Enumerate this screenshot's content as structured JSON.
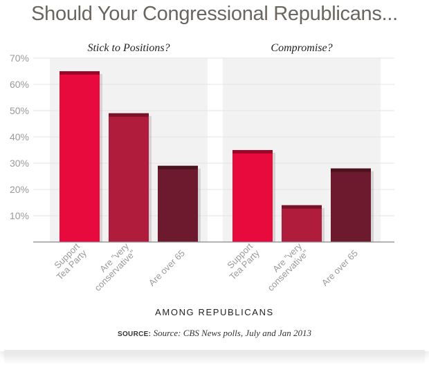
{
  "title": "Should Your Congressional Republicans...",
  "xlabel": "AMONG REPUBLICANS",
  "source_label": "SOURCE:",
  "source_text": "Source: CBS News polls, July and Jan 2013",
  "colors": {
    "support_tea_party": "#e8093d",
    "very_conservative": "#b01c3b",
    "over_65": "#6e1a2e",
    "panel_bg": "#f2f2f2",
    "grid": "#e4e4e4"
  },
  "chart_data": {
    "type": "bar",
    "ylim": [
      0,
      70
    ],
    "yticks": [
      "10%",
      "20%",
      "30%",
      "40%",
      "50%",
      "60%",
      "70%"
    ],
    "ytick_values": [
      10,
      20,
      30,
      40,
      50,
      60,
      70
    ],
    "categories": [
      "Support Tea Party",
      "Are \"very conservative\"",
      "Are over 65"
    ],
    "category_label_lines": [
      [
        "Support",
        "Tea Party"
      ],
      [
        "Are \"very",
        "conservative\""
      ],
      [
        "Are over 65"
      ]
    ],
    "panels": [
      {
        "name": "Stick to Positions?",
        "values": [
          65,
          49,
          29
        ]
      },
      {
        "name": "Compromise?",
        "values": [
          35,
          14,
          28
        ]
      }
    ],
    "grid": true,
    "legend": "none"
  }
}
